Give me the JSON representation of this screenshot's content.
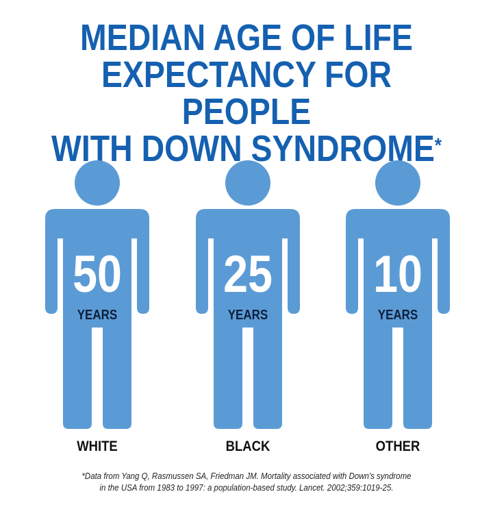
{
  "title": {
    "lines": [
      "MEDIAN AGE OF LIFE",
      "EXPECTANCY FOR PEOPLE",
      "WITH DOWN SYNDROME"
    ],
    "mark": "*"
  },
  "colors": {
    "title": "#1560b0",
    "figure": "#5b9bd5",
    "years_text": "#0d1f3c",
    "value_text": "#ffffff"
  },
  "chart_data": {
    "type": "pictograph",
    "title": "MEDIAN AGE OF LIFE EXPECTANCY FOR PEOPLE WITH DOWN SYNDROME*",
    "unit": "YEARS",
    "categories": [
      "WHITE",
      "BLACK",
      "OTHER"
    ],
    "values": [
      50,
      25,
      10
    ],
    "icon": "person-icon"
  },
  "footnote": {
    "lines": [
      "*Data from Yang Q, Rasmussen SA, Friedman JM. Mortality associated with Down's syndrome",
      "in the USA from 1983 to 1997: a population-based study. Lancet. 2002;359:1019-25."
    ]
  }
}
